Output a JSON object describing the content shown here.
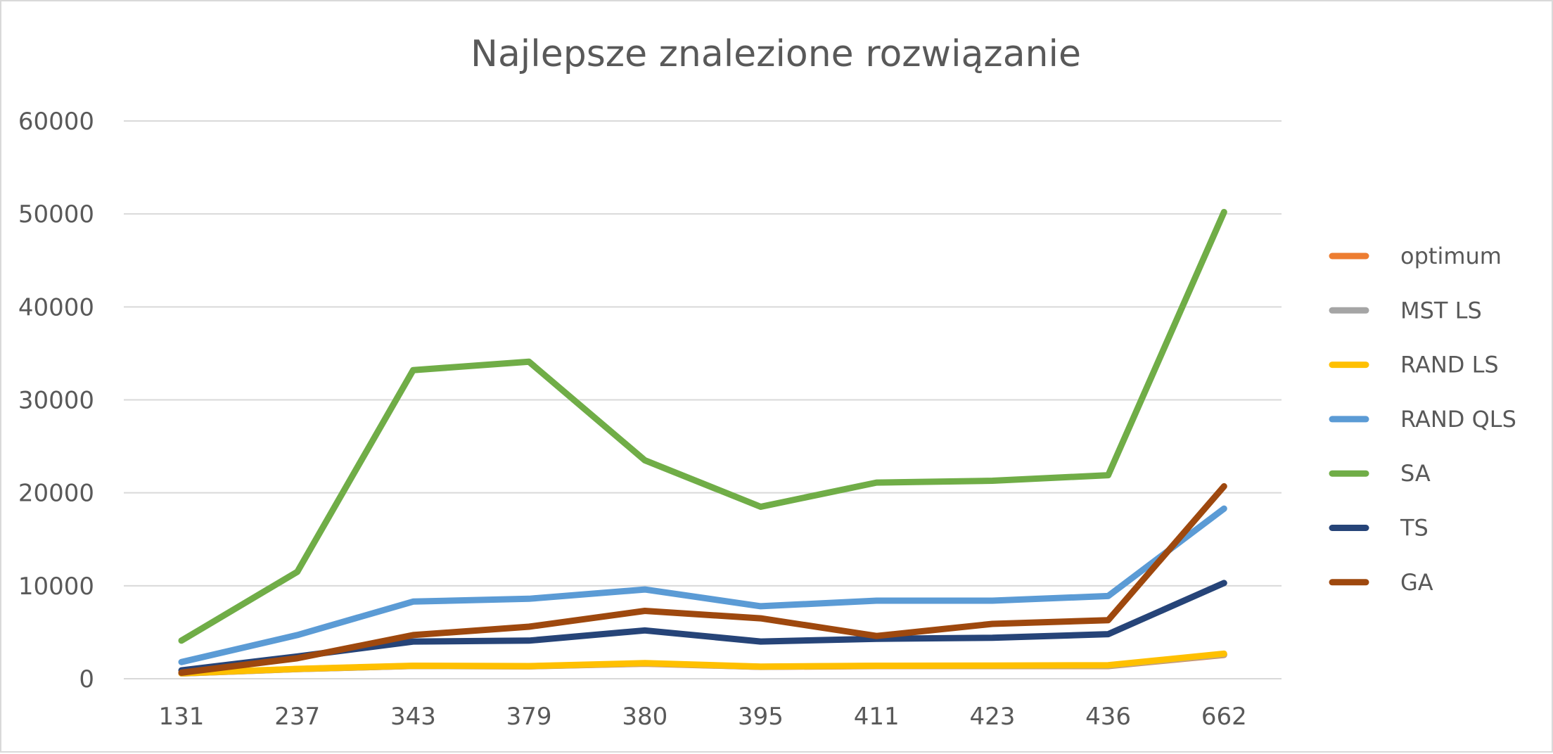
{
  "chart_data": {
    "type": "line",
    "title": "Najlepsze znalezione rozwiązanie",
    "xlabel": "",
    "ylabel": "",
    "categories": [
      "131",
      "237",
      "343",
      "379",
      "380",
      "395",
      "411",
      "423",
      "436",
      "662"
    ],
    "ylim": [
      0,
      60000
    ],
    "yticks": [
      0,
      10000,
      20000,
      30000,
      40000,
      50000,
      60000
    ],
    "grid": true,
    "legend_position": "right",
    "series": [
      {
        "name": "optimum",
        "color": "#ED7D31",
        "values": [
          564,
          1035,
          1368,
          1332,
          1621,
          1281,
          1365,
          1365,
          1365,
          2568
        ]
      },
      {
        "name": "MST LS",
        "color": "#A5A5A5",
        "values": [
          564,
          1040,
          1380,
          1340,
          1640,
          1290,
          1380,
          1380,
          1390,
          2610
        ]
      },
      {
        "name": "RAND LS",
        "color": "#FFC000",
        "values": [
          580,
          1060,
          1400,
          1360,
          1680,
          1310,
          1400,
          1420,
          1460,
          2690
        ]
      },
      {
        "name": "RAND QLS",
        "color": "#5B9BD5",
        "values": [
          1800,
          4700,
          8300,
          8600,
          9600,
          7800,
          8400,
          8400,
          8900,
          18300
        ]
      },
      {
        "name": "SA",
        "color": "#70AD47",
        "values": [
          4100,
          11500,
          33200,
          34100,
          23500,
          18500,
          21100,
          21300,
          21900,
          50200
        ]
      },
      {
        "name": "TS",
        "color": "#264478",
        "values": [
          900,
          2400,
          4000,
          4100,
          5200,
          4000,
          4300,
          4400,
          4800,
          10300
        ]
      },
      {
        "name": "GA",
        "color": "#9E480E",
        "values": [
          650,
          2200,
          4700,
          5600,
          7300,
          6500,
          4600,
          5900,
          6300,
          20700
        ]
      }
    ]
  }
}
